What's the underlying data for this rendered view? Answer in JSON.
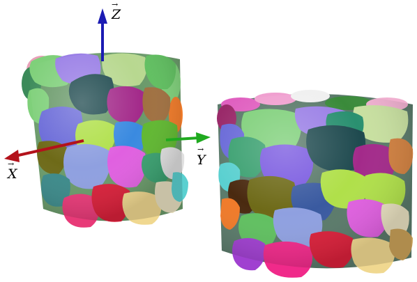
{
  "axes": {
    "z_label": "Z",
    "x_label": "X",
    "y_label": "Y",
    "z_color": "#1b1bb3",
    "x_color": "#b3121b",
    "y_color": "#1faa1f",
    "vector_mark": "→"
  },
  "packings": [
    {
      "name": "left-cylinder-packing"
    },
    {
      "name": "right-cylinder-packing"
    }
  ],
  "palette": [
    "#9a7fe6",
    "#7fd07a",
    "#1f4a4f",
    "#a32a8a",
    "#6a6ad8",
    "#b0e04a",
    "#c8e0a0",
    "#e060e0",
    "#e83a78",
    "#f0d890",
    "#8fa0e0",
    "#3c8a8a",
    "#60c060",
    "#6e6a18",
    "#f07a28",
    "#a07040",
    "#5ad0d0",
    "#3a8ae0",
    "#f02a8a",
    "#b87828"
  ]
}
